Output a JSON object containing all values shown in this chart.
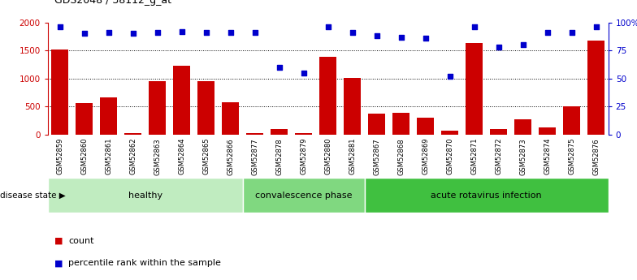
{
  "title": "GDS2048 / 38112_g_at",
  "samples": [
    "GSM52859",
    "GSM52860",
    "GSM52861",
    "GSM52862",
    "GSM52863",
    "GSM52864",
    "GSM52865",
    "GSM52866",
    "GSM52877",
    "GSM52878",
    "GSM52879",
    "GSM52880",
    "GSM52881",
    "GSM52867",
    "GSM52868",
    "GSM52869",
    "GSM52870",
    "GSM52871",
    "GSM52872",
    "GSM52873",
    "GSM52874",
    "GSM52875",
    "GSM52876"
  ],
  "counts": [
    1510,
    560,
    660,
    30,
    950,
    1220,
    950,
    580,
    30,
    90,
    20,
    1380,
    1010,
    365,
    390,
    295,
    60,
    1630,
    100,
    275,
    125,
    500,
    1680
  ],
  "percentiles": [
    96,
    90,
    91,
    90,
    91,
    92,
    91,
    91,
    91,
    60,
    55,
    96,
    91,
    88,
    87,
    86,
    52,
    96,
    78,
    80,
    91,
    91,
    96
  ],
  "groups": [
    {
      "label": "healthy",
      "start": 0,
      "end": 8,
      "color": "#c0ecc0"
    },
    {
      "label": "convalescence phase",
      "start": 8,
      "end": 13,
      "color": "#80d880"
    },
    {
      "label": "acute rotavirus infection",
      "start": 13,
      "end": 23,
      "color": "#40c040"
    }
  ],
  "left_axis_color": "#cc0000",
  "right_axis_color": "#0000cc",
  "bar_color": "#cc0000",
  "dot_color": "#0000cc",
  "ylim_left": [
    0,
    2000
  ],
  "ylim_right": [
    0,
    100
  ],
  "yticks_left": [
    0,
    500,
    1000,
    1500,
    2000
  ],
  "yticks_right": [
    0,
    25,
    50,
    75,
    100
  ],
  "ytick_labels_right": [
    "0",
    "25",
    "50",
    "75",
    "100%"
  ],
  "legend_count_label": "count",
  "legend_pct_label": "percentile rank within the sample",
  "disease_state_label": "disease state",
  "xtick_bg_color": "#c8c8c8",
  "bg_color": "#ffffff",
  "dotted_line_color": "#000000"
}
